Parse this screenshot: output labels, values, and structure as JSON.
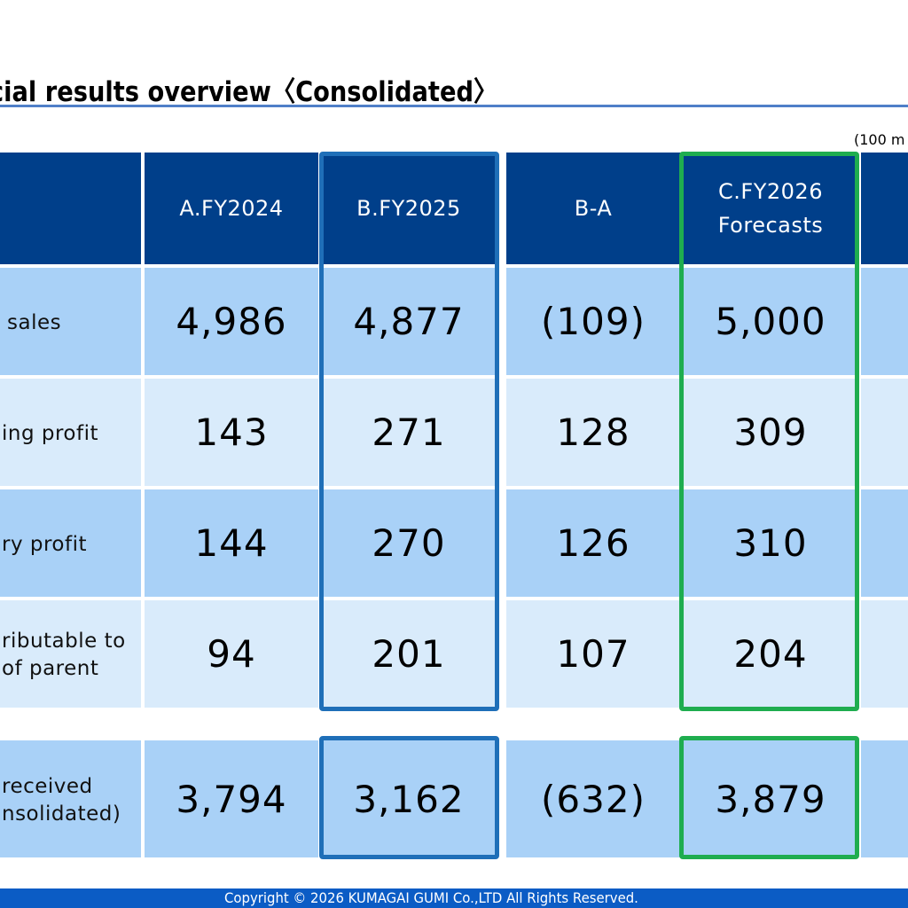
{
  "title": "cial results overview〈Consolidated〉",
  "unit_note": "(100 m",
  "columns": [
    "A.FY2024",
    "B.FY2025",
    "B-A",
    "C.FY2026\nForecasts"
  ],
  "rows": [
    {
      "label": "sales",
      "values": [
        "4,986",
        "4,877",
        "(109)",
        "5,000"
      ]
    },
    {
      "label": "ing profit",
      "values": [
        "143",
        "271",
        "128",
        "309"
      ]
    },
    {
      "label": "ry profit",
      "values": [
        "144",
        "270",
        "126",
        "310"
      ]
    },
    {
      "label": "ributable to\nof parent",
      "values": [
        "94",
        "201",
        "107",
        "204"
      ]
    },
    {
      "label": "received\nnsolidated)",
      "values": [
        "3,794",
        "3,162",
        "(632)",
        "3,879"
      ]
    }
  ],
  "footer": "Copyright © 2026 KUMAGAI  GUMI Co.,LTD All Rights Reserved.",
  "colors": {
    "header_bg": "#003f8a",
    "row_dark": "#a9d1f7",
    "row_light": "#d9ebfb",
    "highlight_blue": "#1f6fb8",
    "highlight_green": "#1fad4f",
    "footer_bg": "#0b5cc5",
    "title_rule": "#4f7fc8"
  }
}
